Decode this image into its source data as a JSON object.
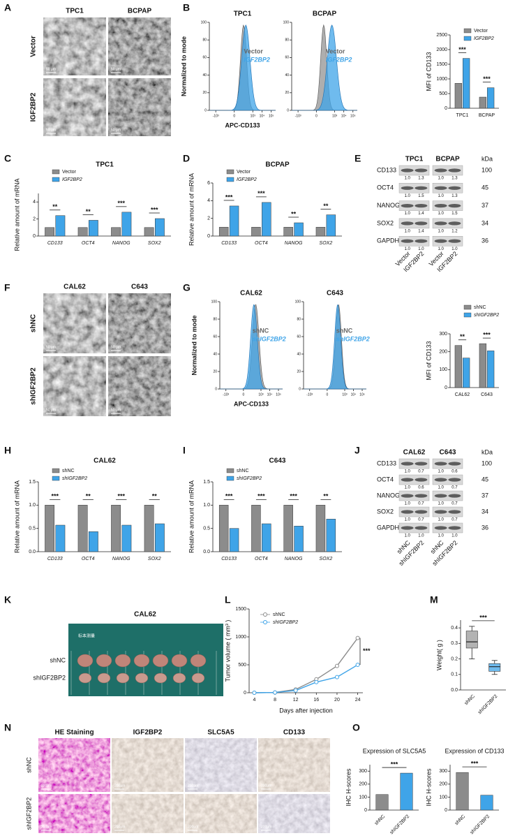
{
  "panel_labels": [
    "A",
    "B",
    "C",
    "D",
    "E",
    "F",
    "G",
    "H",
    "I",
    "J",
    "K",
    "L",
    "M",
    "N",
    "O"
  ],
  "panel_A": {
    "columns": [
      "TPC1",
      "BCPAP"
    ],
    "rows": [
      "Vector",
      "IGF2BP2"
    ],
    "scale_bar": "50 μm"
  },
  "panel_E": {
    "columns": [
      "TPC1",
      "BCPAP"
    ],
    "unit": "kDa",
    "rows": [
      {
        "name": "CD133",
        "kda": 100,
        "ratios": [
          "1.0",
          "1.3",
          "1.0",
          "1.3"
        ]
      },
      {
        "name": "OCT4",
        "kda": 45,
        "ratios": [
          "1.0",
          "1.5",
          "1.0",
          "1.3"
        ]
      },
      {
        "name": "NANOG",
        "kda": 37,
        "ratios": [
          "1.0",
          "1.4",
          "1.0",
          "1.5"
        ]
      },
      {
        "name": "SOX2",
        "kda": 34,
        "ratios": [
          "1.0",
          "1.4",
          "1.0",
          "1.2"
        ]
      },
      {
        "name": "GAPDH",
        "kda": 36,
        "ratios": [
          "1.0",
          "1.0",
          "1.0",
          "1.0"
        ]
      }
    ],
    "lanes": [
      "Vector",
      "IGF2BP2",
      "Vector",
      "IGF2BP2"
    ]
  },
  "panel_F": {
    "columns": [
      "CAL62",
      "C643"
    ],
    "rows": [
      "shNC",
      "shIGF2BP2"
    ],
    "scale_bar": "50 μm"
  },
  "panel_J": {
    "columns": [
      "CAL62",
      "C643"
    ],
    "unit": "kDa",
    "rows": [
      {
        "name": "CD133",
        "kda": 100,
        "ratios": [
          "1.0",
          "0.7",
          "1.0",
          "0.6"
        ]
      },
      {
        "name": "OCT4",
        "kda": 45,
        "ratios": [
          "1.0",
          "0.6",
          "1.0",
          "0.7"
        ]
      },
      {
        "name": "NANOG",
        "kda": 37,
        "ratios": [
          "1.0",
          "0.7",
          "1.0",
          "0.7"
        ]
      },
      {
        "name": "SOX2",
        "kda": 34,
        "ratios": [
          "1.0",
          "0.7",
          "1.0",
          "0.7"
        ]
      },
      {
        "name": "GAPDH",
        "kda": 36,
        "ratios": [
          "1.0",
          "1.0",
          "1.0",
          "1.0"
        ]
      }
    ],
    "lanes": [
      "shNC",
      "shIGF2BP2",
      "shNC",
      "shIGF2BP2"
    ]
  },
  "panel_K": {
    "title": "CAL62",
    "rows": [
      "shNC",
      "shIGF2BP2"
    ],
    "photo_label": "标本测量"
  },
  "panel_N": {
    "columns": [
      "HE Staining",
      "IGF2BP2",
      "SLC5A5",
      "CD133"
    ],
    "rows": [
      "shNC",
      "shIGF2BP2"
    ],
    "scale_bar": "200μm"
  },
  "chart_data": [
    {
      "type": "flow",
      "title": "TPC1",
      "ylabel": "Normalized to mode",
      "xlabel": "APC-CD133",
      "series": [
        {
          "name": "Vector",
          "color": "#8c8c8c"
        },
        {
          "name": "IGF2BP2",
          "color": "#3fa4e8"
        }
      ],
      "ylim": [
        0,
        100
      ],
      "yticks": [
        0,
        20,
        40,
        60,
        80,
        100
      ],
      "xlim": [
        -5000,
        300000
      ],
      "xticks": [
        {
          "value": -1000,
          "label": "-10³"
        },
        0,
        {
          "value": 1000,
          "label": "10³"
        },
        {
          "value": 10000,
          "label": "10⁴"
        },
        {
          "value": 100000,
          "label": "10⁵"
        }
      ]
    },
    {
      "type": "flow",
      "title": "BCPAP",
      "series": [
        {
          "name": "Vector",
          "color": "#8c8c8c"
        },
        {
          "name": "IGF2BP2",
          "color": "#3fa4e8"
        }
      ],
      "ylim": [
        0,
        100
      ],
      "yticks": [
        0,
        20,
        40,
        60,
        80,
        100
      ],
      "xlim": [
        -5000,
        300000
      ],
      "xticks": [
        {
          "value": -1000,
          "label": "-10³"
        },
        0,
        {
          "value": 1000,
          "label": "10³"
        },
        {
          "value": 10000,
          "label": "10⁴"
        },
        {
          "value": 100000,
          "label": "10⁵"
        }
      ]
    },
    {
      "type": "bar",
      "ylabel": "MFI of CD133",
      "categories": [
        "TPC1",
        "BCPAP"
      ],
      "series": [
        {
          "name": "Vector",
          "color": "#8c8c8c",
          "values": [
            850,
            380
          ]
        },
        {
          "name": "IGF2BP2",
          "color": "#3fa4e8",
          "values": [
            1700,
            700
          ]
        }
      ],
      "ylim": [
        0,
        2500
      ],
      "yticks": [
        0,
        500,
        1000,
        1500,
        2000,
        2500
      ],
      "legend": "upper right",
      "annotations": [
        "***",
        "***"
      ]
    },
    {
      "type": "bar",
      "title": "TPC1",
      "ylabel": "Relative amount of mRNA",
      "categories": [
        "CD133",
        "OCT4",
        "NANOG",
        "SOX2"
      ],
      "category_style": "italic",
      "series": [
        {
          "name": "Vector",
          "color": "#8c8c8c",
          "values": [
            1,
            1,
            1,
            1
          ]
        },
        {
          "name": "IGF2BP2",
          "color": "#3fa4e8",
          "values": [
            2.4,
            1.85,
            2.8,
            2.05
          ]
        }
      ],
      "ylim": [
        0,
        5
      ],
      "yticks": [
        0,
        2,
        4
      ],
      "legend": "upper left",
      "annotations": [
        "**",
        "**",
        "***",
        "***"
      ]
    },
    {
      "type": "bar",
      "title": "BCPAP",
      "ylabel": "Relative amount of mRNA",
      "categories": [
        "CD133",
        "OCT4",
        "NANOG",
        "SOX2"
      ],
      "category_style": "italic",
      "series": [
        {
          "name": "Vector",
          "color": "#8c8c8c",
          "values": [
            1,
            1,
            1,
            1
          ]
        },
        {
          "name": "IGF2BP2",
          "color": "#3fa4e8",
          "values": [
            3.4,
            3.8,
            1.5,
            2.4
          ]
        }
      ],
      "ylim": [
        0,
        6
      ],
      "yticks": [
        0,
        2,
        4,
        6
      ],
      "legend": "upper left",
      "annotations": [
        "***",
        "***",
        "**",
        "**"
      ]
    },
    {
      "type": "flow",
      "title": "CAL62",
      "ylabel": "Normalized to mode",
      "xlabel": "APC-CD133",
      "series": [
        {
          "name": "shNC",
          "color": "#8c8c8c"
        },
        {
          "name": "shIGF2BP2",
          "color": "#3fa4e8"
        }
      ],
      "ylim": [
        0,
        100
      ],
      "yticks": [
        0,
        20,
        40,
        60,
        80,
        100
      ],
      "xlim": [
        -5000,
        300000
      ],
      "xticks": [
        {
          "value": -1000,
          "label": "-10³"
        },
        0,
        {
          "value": 1000,
          "label": "10³"
        },
        {
          "value": 10000,
          "label": "10⁴"
        },
        {
          "value": 100000,
          "label": "10⁵"
        }
      ]
    },
    {
      "type": "flow",
      "title": "C643",
      "series": [
        {
          "name": "shNC",
          "color": "#8c8c8c"
        },
        {
          "name": "shIGF2BP2",
          "color": "#3fa4e8"
        }
      ],
      "ylim": [
        0,
        100
      ],
      "yticks": [
        0,
        20,
        40,
        60,
        80,
        100
      ],
      "xlim": [
        -5000,
        300000
      ],
      "xticks": [
        {
          "value": -1000,
          "label": "-10³"
        },
        0,
        {
          "value": 1000,
          "label": "10³"
        },
        {
          "value": 10000,
          "label": "10⁴"
        },
        {
          "value": 100000,
          "label": "10⁵"
        }
      ]
    },
    {
      "type": "bar",
      "ylabel": "MFI of CD133",
      "categories": [
        "CAL62",
        "C643"
      ],
      "series": [
        {
          "name": "shNC",
          "color": "#8c8c8c",
          "values": [
            235,
            245
          ]
        },
        {
          "name": "shIGF2BP2",
          "color": "#3fa4e8",
          "values": [
            165,
            205
          ]
        }
      ],
      "ylim": [
        0,
        300
      ],
      "yticks": [
        0,
        100,
        200,
        300
      ],
      "legend": "upper right",
      "annotations": [
        "**",
        "***"
      ]
    },
    {
      "type": "bar",
      "title": "CAL62",
      "ylabel": "Relative amount of mRNA",
      "categories": [
        "CD133",
        "OCT4",
        "NANOG",
        "SOX2"
      ],
      "category_style": "italic",
      "series": [
        {
          "name": "shNC",
          "color": "#8c8c8c",
          "values": [
            1,
            1,
            1,
            1
          ]
        },
        {
          "name": "shIGF2BP2",
          "color": "#3fa4e8",
          "values": [
            0.57,
            0.43,
            0.57,
            0.6
          ]
        }
      ],
      "ylim": [
        0,
        1.5
      ],
      "yticks": [
        {
          "value": 0,
          "label": "0.0"
        },
        0.5,
        {
          "value": 1,
          "label": "1.0"
        },
        1.5
      ],
      "legend": "upper left",
      "annotations": [
        "***",
        "**",
        "***",
        "**"
      ]
    },
    {
      "type": "bar",
      "title": "C643",
      "ylabel": "Relative amount of mRNA",
      "categories": [
        "CD133",
        "OCT4",
        "NANOG",
        "SOX2"
      ],
      "category_style": "italic",
      "series": [
        {
          "name": "shNC",
          "color": "#8c8c8c",
          "values": [
            1,
            1,
            1,
            1
          ]
        },
        {
          "name": "shIGF2BP2",
          "color": "#3fa4e8",
          "values": [
            0.5,
            0.6,
            0.55,
            0.7
          ]
        }
      ],
      "ylim": [
        0,
        1.5
      ],
      "yticks": [
        {
          "value": 0,
          "label": "0.0"
        },
        0.5,
        {
          "value": 1,
          "label": "1.0"
        },
        1.5
      ],
      "legend": "upper left",
      "annotations": [
        "***",
        "***",
        "***",
        "**"
      ]
    },
    {
      "type": "line",
      "ylabel": "Tumor volume ( mm³ )",
      "xlabel": "Days after injection",
      "x": [
        4,
        8,
        12,
        16,
        20,
        24
      ],
      "series": [
        {
          "name": "shNC",
          "color": "#8c8c8c",
          "values": [
            0,
            5,
            60,
            240,
            480,
            980
          ]
        },
        {
          "name": "shIGF2BP2",
          "color": "#3fa4e8",
          "values": [
            0,
            5,
            40,
            190,
            280,
            500
          ]
        }
      ],
      "xlim": [
        3,
        25
      ],
      "ylim": [
        0,
        1500
      ],
      "xticks": [
        4,
        8,
        12,
        16,
        20,
        24
      ],
      "yticks": [
        0,
        500,
        1000,
        1500
      ],
      "legend": "upper left",
      "annotations": [
        "***"
      ]
    },
    {
      "type": "box",
      "ylabel": "Weight( g )",
      "categories": [
        "shNC",
        "shIGF2BP2"
      ],
      "boxes": [
        {
          "min": 0.2,
          "q1": 0.27,
          "median": 0.31,
          "q3": 0.38,
          "max": 0.41,
          "color": "#9a9a9a"
        },
        {
          "min": 0.1,
          "q1": 0.12,
          "median": 0.15,
          "q3": 0.17,
          "max": 0.19,
          "color": "#3fa4e8"
        }
      ],
      "ylim": [
        0,
        0.45
      ],
      "yticks": [
        {
          "value": 0,
          "label": "0.0"
        },
        0.1,
        0.2,
        0.3,
        0.4
      ],
      "annotations": [
        "***"
      ]
    },
    {
      "type": "bar",
      "title": "Expression of  SLC5A5",
      "ylabel": "IHC H-scores",
      "categories": [
        "shNC",
        "shIGF2BP2"
      ],
      "values": [
        120,
        285
      ],
      "colors": [
        "#8c8c8c",
        "#3fa4e8"
      ],
      "ylim": [
        0,
        350
      ],
      "yticks": [
        0,
        100,
        200,
        300
      ],
      "annotations": [
        "***"
      ]
    },
    {
      "type": "bar",
      "title": "Expression of CD133",
      "ylabel": "IHC H-scores",
      "categories": [
        "shNC",
        "shIGF2BP2"
      ],
      "values": [
        290,
        115
      ],
      "colors": [
        "#8c8c8c",
        "#3fa4e8"
      ],
      "ylim": [
        0,
        350
      ],
      "yticks": [
        0,
        100,
        200,
        300
      ],
      "annotations": [
        "***"
      ]
    }
  ]
}
